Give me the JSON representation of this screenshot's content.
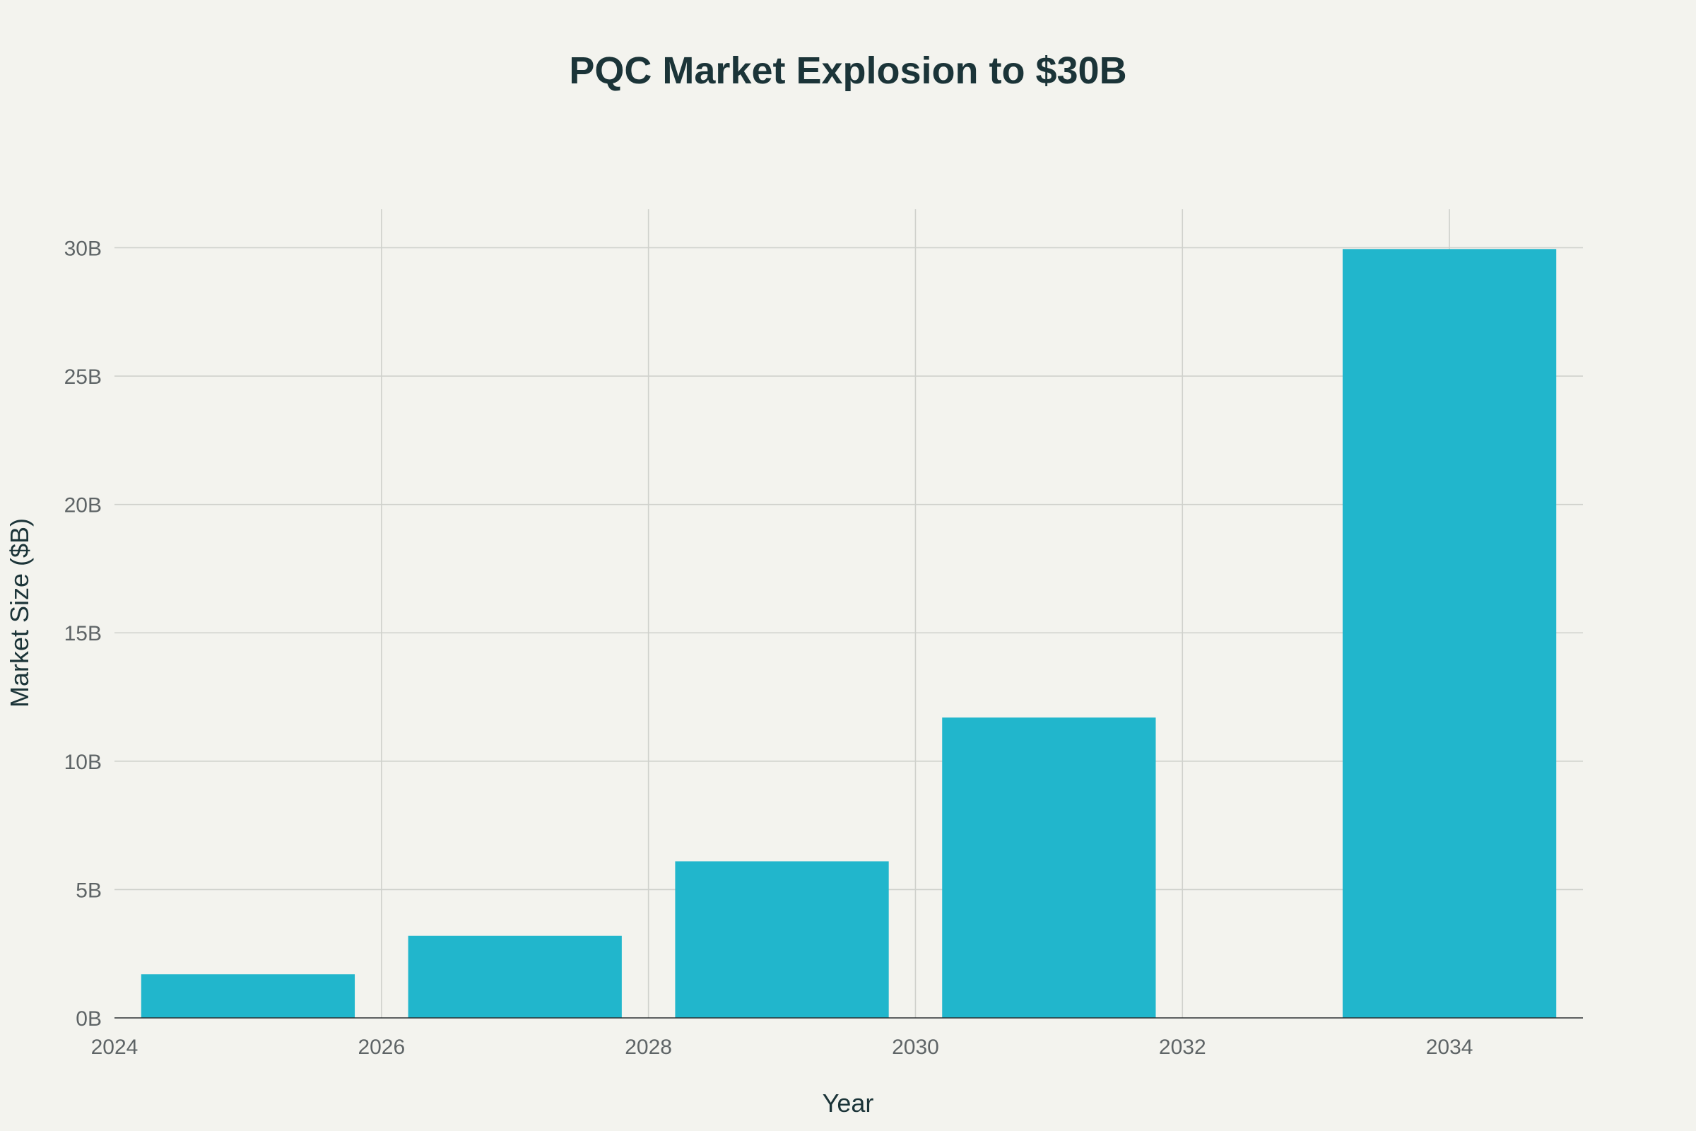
{
  "chart_data": {
    "type": "bar",
    "title": "PQC Market Explosion to $30B",
    "xlabel": "Year",
    "ylabel": "Market Size ($B)",
    "x_ticks": [
      "2024",
      "2026",
      "2028",
      "2030",
      "2032",
      "2034"
    ],
    "y_ticks": [
      "0B",
      "5B",
      "10B",
      "15B",
      "20B",
      "25B",
      "30B"
    ],
    "xlim": [
      2024,
      2035
    ],
    "ylim": [
      0,
      31.5
    ],
    "grid": true,
    "colors": {
      "bar": "#21b6cc",
      "background": "#f3f3ee",
      "grid": "#cfd1cc",
      "title": "#1b3438"
    },
    "bars": [
      {
        "x0": 2024.2,
        "x1": 2025.8,
        "value": 1.7
      },
      {
        "x0": 2026.2,
        "x1": 2027.8,
        "value": 3.2
      },
      {
        "x0": 2028.2,
        "x1": 2029.8,
        "value": 6.1
      },
      {
        "x0": 2030.2,
        "x1": 2031.8,
        "value": 11.7
      },
      {
        "x0": 2033.2,
        "x1": 2034.8,
        "value": 29.95
      }
    ]
  }
}
